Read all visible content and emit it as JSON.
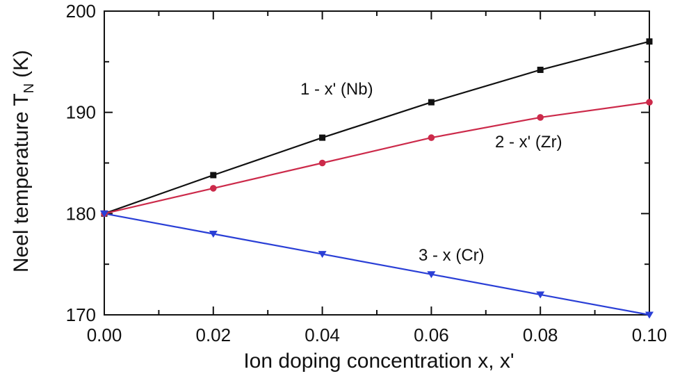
{
  "chart_data": {
    "type": "line",
    "xlabel": "Ion doping concentration x, x'",
    "ylabel_main": "Neel temperature T",
    "ylabel_sub": "N",
    "ylabel_unit": "(K)",
    "xlim": [
      0.0,
      0.1
    ],
    "ylim": [
      170,
      200
    ],
    "x_ticks": [
      "0.00",
      "0.02",
      "0.04",
      "0.06",
      "0.08",
      "0.10"
    ],
    "y_ticks": [
      "170",
      "180",
      "190",
      "200"
    ],
    "x": [
      0.0,
      0.02,
      0.04,
      0.06,
      0.08,
      0.1
    ],
    "grid": false,
    "legend": "none",
    "series": [
      {
        "name": "1 - x' (Nb)",
        "marker": "square",
        "color": "#111111",
        "values": [
          180.0,
          183.8,
          187.5,
          191.0,
          194.2,
          197.0
        ]
      },
      {
        "name": "2 - x' (Zr)",
        "marker": "circle",
        "color": "#cc2a4a",
        "values": [
          180.0,
          182.5,
          185.0,
          187.5,
          189.5,
          191.0
        ]
      },
      {
        "name": "3 - x (Cr)",
        "marker": "triangle-down",
        "color": "#2a3fd6",
        "values": [
          180.0,
          178.0,
          176.0,
          174.0,
          172.0,
          170.0
        ]
      }
    ]
  }
}
